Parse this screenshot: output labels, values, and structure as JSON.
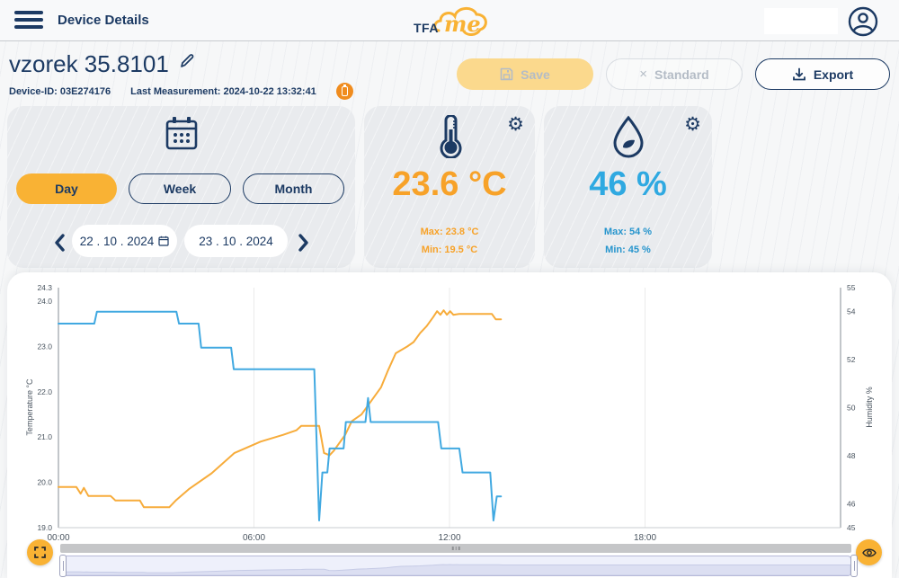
{
  "header": {
    "title": "Device Details",
    "logo_tfa": "TFA",
    "logo_me": "me"
  },
  "device": {
    "name": "vzorek 35.8101",
    "id_text": "Device-ID: 03E274176",
    "last_measurement_text": "Last Measurement: 2024-10-22 13:32:41"
  },
  "actions": {
    "save_label": "Save",
    "standard_label": "Standard",
    "standard_x": "×",
    "export_label": "Export"
  },
  "period": {
    "day_label": "Day",
    "week_label": "Week",
    "month_label": "Month",
    "selected": "Day",
    "date_from": "22 . 10 . 2024",
    "date_to": "23 . 10 . 2024"
  },
  "temperature_card": {
    "value": "23.6 °C",
    "max_label": "Max:",
    "max_value": "23.8 °C",
    "min_label": "Min:",
    "min_value": "19.5 °C"
  },
  "humidity_card": {
    "value": "46 %",
    "max_label": "Max:",
    "max_value": "54 %",
    "min_label": "Min:",
    "min_value": "45 %"
  },
  "icons": {
    "menu": "hamburger-icon",
    "profile": "profile-icon",
    "edit": "pencil-icon",
    "battery": "battery-status-icon",
    "save": "floppy-icon",
    "export": "download-icon",
    "calendar": "calendar-icon",
    "temperature": "thermometer-icon",
    "humidity": "droplet-icon",
    "settings": "gear-icon",
    "gear_glyph": "⚙",
    "fullscreen": "expand-corners-icon",
    "visibility": "eye-icon"
  },
  "colors": {
    "navy": "#1c3a63",
    "accent_yellow": "#f9b234",
    "temperature_orange": "#f7a229",
    "humidity_blue": "#2fa9e1",
    "chart_orange": "#f7ac3b",
    "chart_blue": "#41a9e1"
  },
  "chart_data": {
    "type": "line",
    "x_range": [
      0,
      24
    ],
    "x_ticks": [
      {
        "h": 0,
        "label": "00:00",
        "grid": false
      },
      {
        "h": 6,
        "label": "06:00",
        "grid": true
      },
      {
        "h": 12,
        "label": "12:00",
        "grid": true
      },
      {
        "h": 18,
        "label": "18:00",
        "grid": true
      }
    ],
    "left_axis": {
      "label": "Temperature °C",
      "range": [
        19.0,
        24.3
      ],
      "ticks": [
        24.3,
        24.0,
        23.0,
        22.0,
        21.0,
        20.0,
        19.0
      ]
    },
    "right_axis": {
      "label": "Humidity %",
      "range": [
        45,
        55
      ],
      "ticks": [
        55,
        54,
        52,
        50,
        48,
        46,
        45
      ]
    },
    "series": [
      {
        "name": "Temperature",
        "axis": "left",
        "color": "#f7ac3b",
        "points": [
          [
            0,
            19.9
          ],
          [
            0.55,
            19.9
          ],
          [
            0.68,
            19.75
          ],
          [
            0.78,
            19.88
          ],
          [
            0.92,
            19.7
          ],
          [
            1.6,
            19.7
          ],
          [
            1.75,
            19.6
          ],
          [
            2.5,
            19.6
          ],
          [
            2.62,
            19.45
          ],
          [
            3.4,
            19.45
          ],
          [
            3.6,
            19.6
          ],
          [
            4.0,
            19.85
          ],
          [
            4.7,
            20.2
          ],
          [
            5.4,
            20.65
          ],
          [
            6.2,
            20.9
          ],
          [
            6.9,
            21.05
          ],
          [
            7.3,
            21.15
          ],
          [
            7.45,
            21.25
          ],
          [
            8.0,
            21.25
          ],
          [
            8.15,
            20.65
          ],
          [
            8.32,
            20.6
          ],
          [
            8.45,
            20.7
          ],
          [
            8.8,
            21.05
          ],
          [
            9.0,
            21.35
          ],
          [
            9.3,
            21.5
          ],
          [
            9.6,
            21.8
          ],
          [
            9.9,
            22.1
          ],
          [
            10.1,
            22.45
          ],
          [
            10.35,
            22.85
          ],
          [
            10.7,
            23.0
          ],
          [
            10.9,
            23.1
          ],
          [
            11.1,
            23.3
          ],
          [
            11.3,
            23.45
          ],
          [
            11.5,
            23.65
          ],
          [
            11.62,
            23.78
          ],
          [
            11.72,
            23.7
          ],
          [
            11.82,
            23.8
          ],
          [
            11.92,
            23.7
          ],
          [
            12.02,
            23.78
          ],
          [
            12.12,
            23.7
          ],
          [
            12.3,
            23.72
          ],
          [
            13.3,
            23.72
          ],
          [
            13.42,
            23.6
          ],
          [
            13.58,
            23.6
          ]
        ]
      },
      {
        "name": "Humidity",
        "axis": "right",
        "color": "#41a9e1",
        "points": [
          [
            0,
            53.5
          ],
          [
            1.1,
            53.5
          ],
          [
            1.18,
            54
          ],
          [
            3.62,
            54
          ],
          [
            3.7,
            53.5
          ],
          [
            4.3,
            53.5
          ],
          [
            4.38,
            52.5
          ],
          [
            5.3,
            52.5
          ],
          [
            5.38,
            51.6
          ],
          [
            7.85,
            51.6
          ],
          [
            8.0,
            45.3
          ],
          [
            8.1,
            47.3
          ],
          [
            8.25,
            47.3
          ],
          [
            8.32,
            48.3
          ],
          [
            8.75,
            48.3
          ],
          [
            8.82,
            49.4
          ],
          [
            9.42,
            49.4
          ],
          [
            9.5,
            50.4
          ],
          [
            9.58,
            49.4
          ],
          [
            11.65,
            49.4
          ],
          [
            11.75,
            48.3
          ],
          [
            12.3,
            48.3
          ],
          [
            12.4,
            47.3
          ],
          [
            13.25,
            47.3
          ],
          [
            13.35,
            45.3
          ],
          [
            13.45,
            46.3
          ],
          [
            13.58,
            46.3
          ]
        ]
      }
    ],
    "legend": "none",
    "grid": "vertical-only"
  }
}
